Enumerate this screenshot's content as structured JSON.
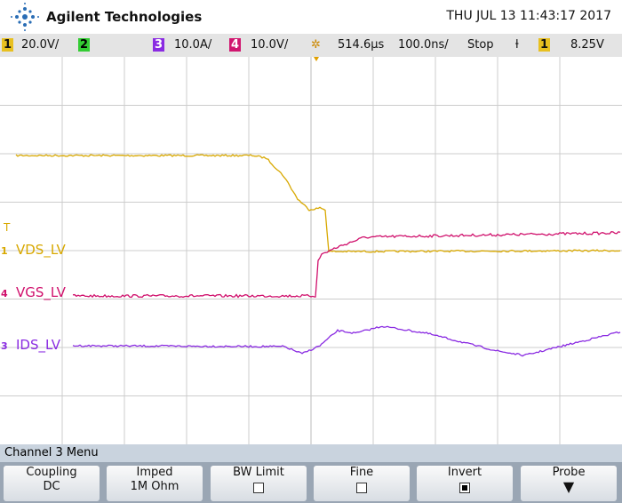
{
  "header": {
    "brand": "Agilent Technologies",
    "datetime": "THU JUL 13 11:43:17 2017"
  },
  "status_bar": {
    "ch1": "1",
    "ch1_scale": "20.0V/",
    "ch2": "2",
    "ch3": "3",
    "ch3_scale": "10.0A/",
    "ch4": "4",
    "ch4_scale": "10.0V/",
    "delay": "514.6µs",
    "timebase": "100.0ns/",
    "run_state": "Stop",
    "trigger_source": "1",
    "trigger_level": "8.25V"
  },
  "channel_labels": [
    {
      "marker": "1",
      "label": "VDS_LV"
    },
    {
      "marker": "4",
      "label": "VGS_LV"
    },
    {
      "marker": "3",
      "label": "IDS_LV"
    }
  ],
  "trigger_marker": "T",
  "menu": {
    "title": "Channel 3 Menu",
    "softkeys": [
      {
        "label": "Coupling",
        "value": "DC"
      },
      {
        "label": "Imped",
        "value": "1M Ohm"
      },
      {
        "label": "BW Limit"
      },
      {
        "label": "Fine"
      },
      {
        "label": "Invert"
      },
      {
        "label": "Probe"
      }
    ]
  }
}
